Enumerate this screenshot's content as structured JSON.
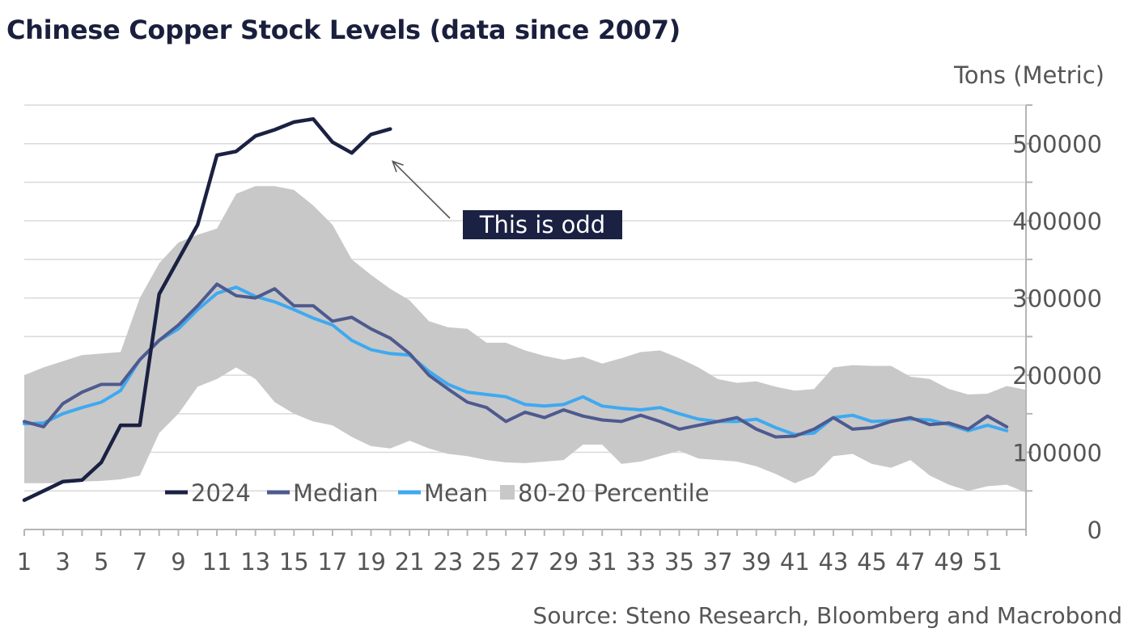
{
  "chart_data": {
    "type": "line",
    "title": "Chinese Copper Stock Levels (data since 2007)",
    "ylabel": "Tons (Metric)",
    "source": "Source: Steno Research, Bloomberg and Macrobond",
    "xlim": [
      1,
      53
    ],
    "ylim": [
      0,
      550000
    ],
    "x_ticks": [
      1,
      3,
      5,
      7,
      9,
      11,
      13,
      15,
      17,
      19,
      21,
      23,
      25,
      27,
      29,
      31,
      33,
      35,
      37,
      39,
      41,
      43,
      45,
      47,
      49,
      51
    ],
    "y_ticks": [
      0,
      100000,
      200000,
      300000,
      400000,
      500000
    ],
    "y_tick_labels": [
      "0",
      "100000",
      "200000",
      "300000",
      "400000",
      "500000"
    ],
    "grid": true,
    "legend_position": "bottom-left",
    "colors": {
      "y2024": "#1b2142",
      "median": "#4e5a8e",
      "mean": "#3fa9f0",
      "band": "#c8c8c8",
      "annotation_bg": "#1b2142",
      "grid": "#d9d9d9"
    },
    "band": {
      "name": "80-20 Percentile",
      "upper": [
        200000,
        210000,
        218000,
        226000,
        228000,
        230000,
        300000,
        345000,
        372000,
        382000,
        390000,
        435000,
        445000,
        445000,
        440000,
        420000,
        395000,
        350000,
        330000,
        312000,
        297000,
        270000,
        262000,
        260000,
        242000,
        242000,
        232000,
        225000,
        220000,
        224000,
        215000,
        222000,
        230000,
        232000,
        222000,
        210000,
        195000,
        190000,
        192000,
        185000,
        180000,
        182000,
        210000,
        213000,
        212000,
        212000,
        198000,
        195000,
        182000,
        175000,
        176000,
        186000,
        181000
      ],
      "lower": [
        60000,
        60000,
        60000,
        62000,
        63000,
        65000,
        70000,
        125000,
        150000,
        185000,
        195000,
        210000,
        195000,
        165000,
        150000,
        140000,
        135000,
        120000,
        108000,
        105000,
        115000,
        105000,
        98000,
        95000,
        90000,
        87000,
        86000,
        88000,
        90000,
        110000,
        110000,
        85000,
        88000,
        95000,
        102000,
        92000,
        90000,
        88000,
        82000,
        72000,
        60000,
        70000,
        95000,
        98000,
        85000,
        80000,
        90000,
        70000,
        58000,
        50000,
        56000,
        58000,
        48000
      ]
    },
    "series": [
      {
        "name": "2024",
        "values": [
          38000,
          50000,
          62000,
          64000,
          87000,
          135000,
          135000,
          305000,
          350000,
          395000,
          485000,
          490000,
          510000,
          518000,
          528000,
          532000,
          502000,
          488000,
          512000,
          519000
        ]
      },
      {
        "name": "Median",
        "values": [
          140000,
          133000,
          163000,
          178000,
          188000,
          188000,
          220000,
          245000,
          265000,
          290000,
          318000,
          303000,
          300000,
          312000,
          290000,
          290000,
          270000,
          275000,
          260000,
          248000,
          228000,
          200000,
          182000,
          165000,
          158000,
          140000,
          152000,
          145000,
          155000,
          147000,
          142000,
          140000,
          148000,
          140000,
          130000,
          135000,
          140000,
          145000,
          130000,
          120000,
          121000,
          130000,
          145000,
          130000,
          132000,
          140000,
          145000,
          136000,
          138000,
          130000,
          147000,
          133000
        ]
      },
      {
        "name": "Mean",
        "values": [
          137000,
          138000,
          150000,
          158000,
          165000,
          180000,
          220000,
          245000,
          260000,
          285000,
          306000,
          314000,
          302000,
          295000,
          285000,
          274000,
          265000,
          245000,
          233000,
          228000,
          226000,
          205000,
          188000,
          178000,
          175000,
          172000,
          162000,
          160000,
          162000,
          172000,
          160000,
          157000,
          155000,
          158000,
          150000,
          143000,
          140000,
          140000,
          143000,
          132000,
          123000,
          125000,
          145000,
          148000,
          140000,
          141000,
          143000,
          142000,
          136000,
          128000,
          135000,
          128000
        ]
      }
    ],
    "annotation": {
      "text": "This is odd",
      "points_to": {
        "x": 20,
        "y": 519000
      }
    }
  }
}
